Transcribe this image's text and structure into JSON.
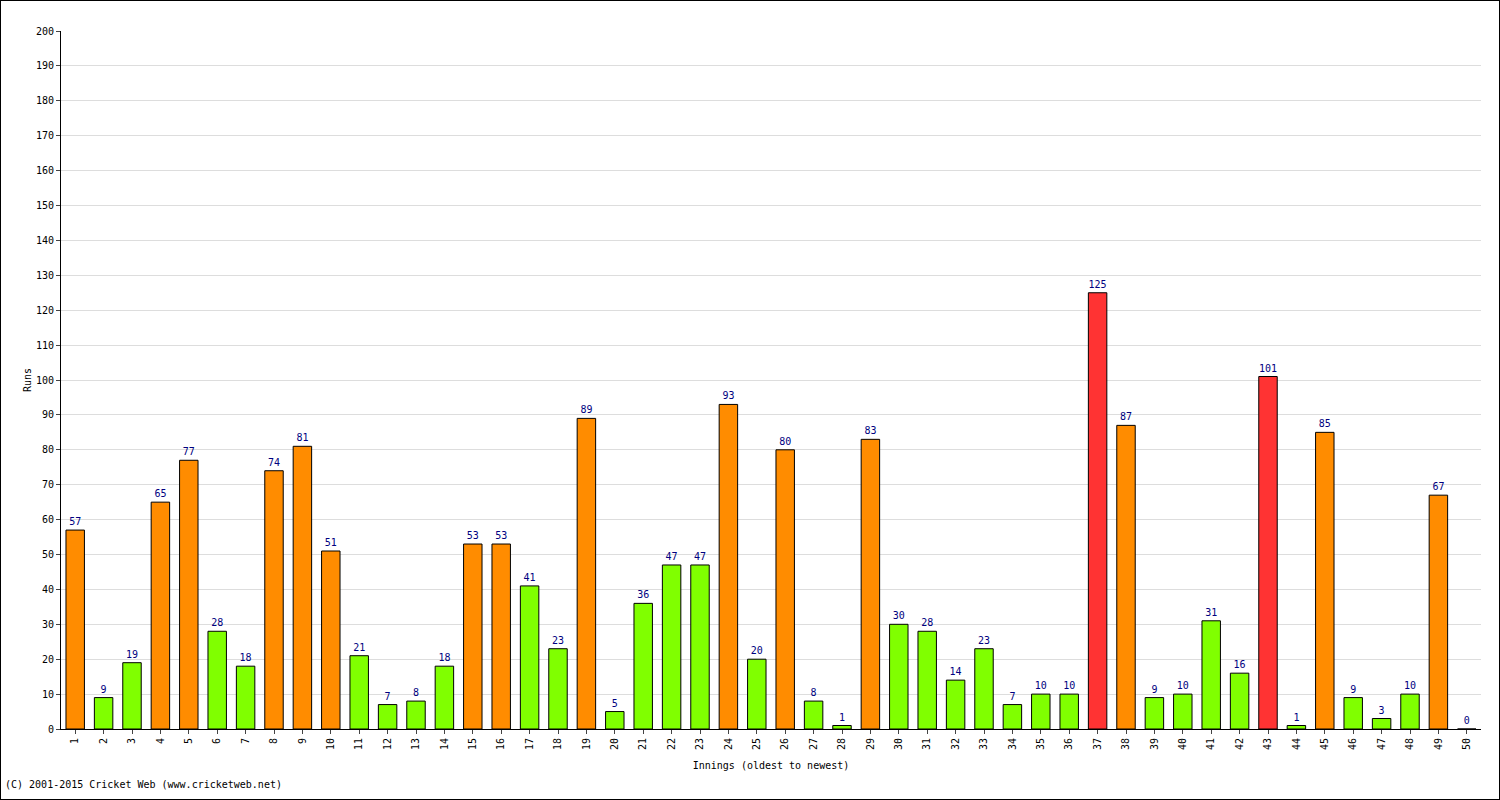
{
  "chart_data": {
    "type": "bar",
    "x_label": "Innings (oldest to newest)",
    "y_label": "Runs",
    "annotations": [
      "(C) 2001-2015 Cricket Web (www.cricketweb.net)"
    ],
    "categories": [
      "1",
      "2",
      "3",
      "4",
      "5",
      "6",
      "7",
      "8",
      "9",
      "10",
      "11",
      "12",
      "13",
      "14",
      "15",
      "16",
      "17",
      "18",
      "19",
      "20",
      "21",
      "22",
      "23",
      "24",
      "25",
      "26",
      "27",
      "28",
      "29",
      "30",
      "31",
      "32",
      "33",
      "34",
      "35",
      "36",
      "37",
      "38",
      "39",
      "40",
      "41",
      "42",
      "43",
      "44",
      "45",
      "46",
      "47",
      "48",
      "49",
      "50"
    ],
    "values": [
      57,
      9,
      19,
      65,
      77,
      28,
      18,
      74,
      81,
      51,
      21,
      7,
      8,
      18,
      53,
      53,
      41,
      23,
      89,
      5,
      36,
      47,
      47,
      93,
      20,
      80,
      8,
      1,
      83,
      30,
      28,
      14,
      23,
      7,
      10,
      10,
      125,
      87,
      9,
      10,
      31,
      16,
      101,
      1,
      85,
      9,
      3,
      10,
      67,
      0
    ],
    "colors": [
      "#ff8c00",
      "#80ff00",
      "#80ff00",
      "#ff8c00",
      "#ff8c00",
      "#80ff00",
      "#80ff00",
      "#ff8c00",
      "#ff8c00",
      "#ff8c00",
      "#80ff00",
      "#80ff00",
      "#80ff00",
      "#80ff00",
      "#ff8c00",
      "#ff8c00",
      "#80ff00",
      "#80ff00",
      "#ff8c00",
      "#80ff00",
      "#80ff00",
      "#80ff00",
      "#80ff00",
      "#ff8c00",
      "#80ff00",
      "#ff8c00",
      "#80ff00",
      "#80ff00",
      "#ff8c00",
      "#80ff00",
      "#80ff00",
      "#80ff00",
      "#80ff00",
      "#80ff00",
      "#80ff00",
      "#80ff00",
      "#ff3333",
      "#ff8c00",
      "#80ff00",
      "#80ff00",
      "#80ff00",
      "#80ff00",
      "#ff3333",
      "#80ff00",
      "#ff8c00",
      "#80ff00",
      "#80ff00",
      "#80ff00",
      "#ff8c00",
      "#80ff00"
    ],
    "ylim": [
      0,
      200
    ],
    "yticks": [
      0,
      10,
      20,
      30,
      40,
      50,
      60,
      70,
      80,
      90,
      100,
      110,
      120,
      130,
      140,
      150,
      160,
      170,
      180,
      190,
      200
    ],
    "grid": true,
    "data_labels": true
  }
}
